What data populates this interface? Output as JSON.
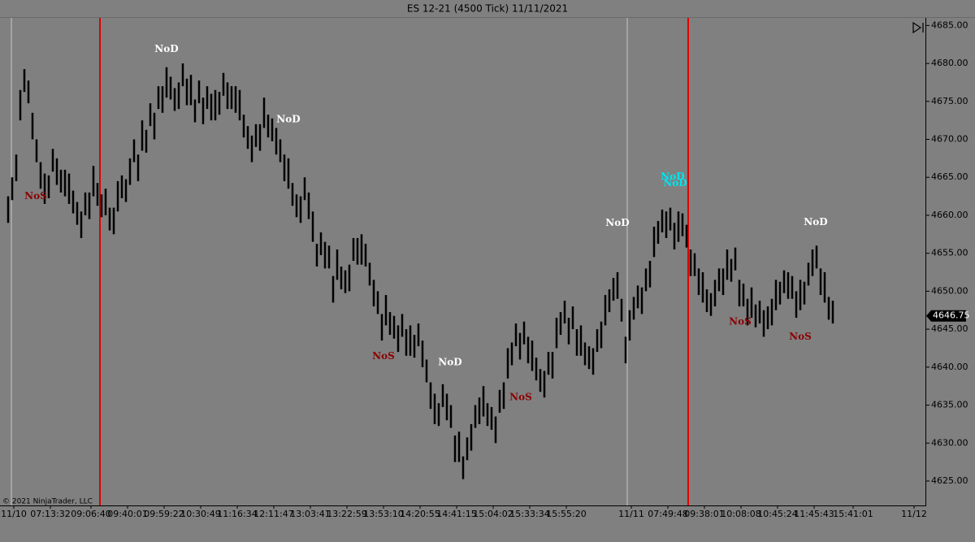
{
  "chart_data": {
    "type": "ohlc",
    "title": "ES 12-21 (4500 Tick)  11/11/2021",
    "watermark": "© 2021 NinjaTrader, LLC",
    "background": "#808080",
    "bar_color": "#000000",
    "high": [
      4662.5,
      4665,
      4668,
      4676.5,
      4679.25,
      4677.75,
      4673.5,
      4670,
      4667,
      4665.5,
      4665.25,
      4668.75,
      4667.5,
      4666,
      4666,
      4665.5,
      4663.25,
      4661.75,
      4660.5,
      4663,
      4663,
      4666.5,
      4664.25,
      4662.75,
      4663.5,
      4661,
      4661,
      4664.5,
      4665.25,
      4664.75,
      4667.5,
      4670,
      4668,
      4672.5,
      4671.25,
      4674.75,
      4673.5,
      4677,
      4677,
      4679.5,
      4678.25,
      4676.75,
      4677.5,
      4680,
      4678,
      4678.5,
      4675.25,
      4677.75,
      4675.5,
      4677,
      4676,
      4676.5,
      4676.25,
      4678.75,
      4677.5,
      4677,
      4677,
      4676.5,
      4673.25,
      4671.75,
      4670.5,
      4672,
      4672,
      4675.5,
      4673.25,
      4672.75,
      4671.5,
      4670,
      4668,
      4667.5,
      4664.25,
      4662.75,
      4662.5,
      4665,
      4663,
      4660.5,
      4656.25,
      4657.75,
      4656.5,
      4656,
      4652,
      4655.5,
      4653.25,
      4652.75,
      4653.5,
      4657,
      4657,
      4657.5,
      4656.25,
      4653.75,
      4651.5,
      4650,
      4647,
      4649.5,
      4647.25,
      4646.75,
      4645.5,
      4647,
      4645,
      4645.5,
      4644.25,
      4645.75,
      4643.5,
      4641,
      4638,
      4636.5,
      4635.25,
      4637.75,
      4636.5,
      4635,
      4631,
      4631.5,
      4628.25,
      4630.75,
      4632.5,
      4635,
      4636,
      4637.5,
      4635.25,
      4634.75,
      4633.5,
      4637,
      4638,
      4642.5,
      4643.25,
      4645.75,
      4644.5,
      4646,
      4644,
      4643.5,
      4641.25,
      4639.75,
      4639.5,
      4642,
      4642,
      4646.5,
      4647.25,
      4648.75,
      4646.5,
      4648,
      4645,
      4645.5,
      4643.25,
      4642.75,
      4642.5,
      4645,
      4646,
      4649.5,
      4650.25,
      4651.75,
      4652.5,
      4649,
      4644,
      4647.5,
      4649.25,
      4650.75,
      4650.5,
      4653,
      4654,
      4658.5,
      4659.25,
      4660.75,
      4660.5,
      4661,
      4659,
      4660.5,
      4660.25,
      4658.75,
      4655.5,
      4655,
      4653,
      4652.5,
      4650.25,
      4649.75,
      4651.5,
      4653,
      4653,
      4655.5,
      4654.25,
      4655.75,
      4651.5,
      4651,
      4649,
      4650.5,
      4648.25,
      4648.75,
      4647.5,
      4648,
      4649,
      4651.5,
      4651.25,
      4652.75,
      4652.5,
      4652,
      4650,
      4651.5,
      4651.25,
      4653.75,
      4655.5,
      4656,
      4653,
      4652.5,
      4649.25,
      4648.75
    ],
    "low": [
      4659,
      4662,
      4664.5,
      4672.5,
      4676.25,
      4674.75,
      4670,
      4667,
      4663.5,
      4661.5,
      4662.25,
      4665.75,
      4664,
      4663,
      4662.5,
      4661.5,
      4660.25,
      4658.75,
      4657,
      4660,
      4659.5,
      4662.5,
      4661.25,
      4659.75,
      4660,
      4658,
      4657.5,
      4660.5,
      4662.25,
      4661.75,
      4664,
      4667,
      4664.5,
      4668.5,
      4668.25,
      4671.75,
      4670,
      4674,
      4673.5,
      4675.5,
      4675.25,
      4673.75,
      4674,
      4677,
      4674.5,
      4674.5,
      4672.25,
      4674.75,
      4672,
      4674,
      4672.5,
      4672.5,
      4673.25,
      4675.75,
      4674,
      4674,
      4673.5,
      4672.5,
      4670.25,
      4668.75,
      4667,
      4669,
      4668.5,
      4671.5,
      4670.25,
      4669.75,
      4668,
      4667,
      4664.5,
      4663.5,
      4661.25,
      4659.75,
      4659,
      4662,
      4659.5,
      4656.5,
      4653.25,
      4654.75,
      4653,
      4653,
      4648.5,
      4651.5,
      4650.25,
      4649.75,
      4650,
      4654,
      4653.5,
      4653.5,
      4653.25,
      4650.75,
      4648,
      4647,
      4643.5,
      4645.5,
      4644.25,
      4643.75,
      4642,
      4644,
      4641.5,
      4641.5,
      4641.25,
      4642.75,
      4640,
      4638,
      4634.5,
      4632.5,
      4632.25,
      4634.75,
      4633,
      4632,
      4627.5,
      4627.5,
      4625.25,
      4627.75,
      4629,
      4632,
      4632.5,
      4633.5,
      4632.25,
      4631.75,
      4630,
      4634,
      4634.5,
      4638.5,
      4640.25,
      4642.75,
      4641,
      4643,
      4640.5,
      4639.5,
      4638.25,
      4636.75,
      4636,
      4639,
      4638.5,
      4642.5,
      4644.25,
      4645.75,
      4643,
      4645,
      4641.5,
      4641.5,
      4640.25,
      4639.75,
      4639,
      4642,
      4642.5,
      4645.5,
      4647.25,
      4648.75,
      4649,
      4646,
      4640.5,
      4643.5,
      4646.25,
      4647.75,
      4647,
      4650,
      4650.5,
      4654.5,
      4656.25,
      4657.75,
      4657,
      4658,
      4655.5,
      4656.5,
      4657.25,
      4655.75,
      4652,
      4652,
      4649.5,
      4648.5,
      4647.25,
      4646.75,
      4648,
      4650,
      4649.5,
      4651.5,
      4651.25,
      4652.75,
      4648,
      4648,
      4645.5,
      4646.5,
      4645.25,
      4645.75,
      4644,
      4645,
      4645.5,
      4647.5,
      4648.25,
      4649.75,
      4649,
      4649,
      4646.5,
      4647.5,
      4648.25,
      4650.75,
      4652,
      4653,
      4649.5,
      4648.5,
      4646.25,
      4645.75
    ],
    "xlim": [
      -2,
      225.6
    ],
    "xticks": [
      {
        "value": 1.4,
        "label": "11/10"
      },
      {
        "value": 10.4,
        "label": "07:13:32"
      },
      {
        "value": 20.4,
        "label": "09:06:40"
      },
      {
        "value": 29.4,
        "label": "09:40:01"
      },
      {
        "value": 38.4,
        "label": "09:59:22"
      },
      {
        "value": 47.4,
        "label": "10:30:49"
      },
      {
        "value": 56.4,
        "label": "11:16:34"
      },
      {
        "value": 65.4,
        "label": "12:11:47"
      },
      {
        "value": 74.4,
        "label": "13:03:41"
      },
      {
        "value": 83.4,
        "label": "13:22:59"
      },
      {
        "value": 92.4,
        "label": "13:53:10"
      },
      {
        "value": 101.4,
        "label": "14:20:55"
      },
      {
        "value": 110.4,
        "label": "14:41:15"
      },
      {
        "value": 119.4,
        "label": "15:04:02"
      },
      {
        "value": 128.4,
        "label": "15:33:34"
      },
      {
        "value": 137.4,
        "label": "15:55:20"
      },
      {
        "value": 153.4,
        "label": "11/11"
      },
      {
        "value": 162.4,
        "label": "07:49:48"
      },
      {
        "value": 171.4,
        "label": "09:38:01"
      },
      {
        "value": 180.4,
        "label": "10:08:08"
      },
      {
        "value": 189.4,
        "label": "10:45:24"
      },
      {
        "value": 198.4,
        "label": "11:45:43"
      },
      {
        "value": 208,
        "label": "15:41:01"
      },
      {
        "value": 223,
        "label": "11/12"
      }
    ],
    "ylim": [
      4622,
      4686
    ],
    "yticks": [
      {
        "value": 4625,
        "label": "4625.00"
      },
      {
        "value": 4630,
        "label": "4630.00"
      },
      {
        "value": 4635,
        "label": "4635.00"
      },
      {
        "value": 4640,
        "label": "4640.00"
      },
      {
        "value": 4645,
        "label": "4645.00"
      },
      {
        "value": 4650,
        "label": "4650.00"
      },
      {
        "value": 4655,
        "label": "4655.00"
      },
      {
        "value": 4660,
        "label": "4660.00"
      },
      {
        "value": 4665,
        "label": "4665.00"
      },
      {
        "value": 4670,
        "label": "4670.00"
      },
      {
        "value": 4675,
        "label": "4675.00"
      },
      {
        "value": 4680,
        "label": "4680.00"
      },
      {
        "value": 4685,
        "label": "4685.00"
      }
    ],
    "vlines": [
      {
        "x": 0.8,
        "color": "#c8c8c8"
      },
      {
        "x": 22.6,
        "color": "#e00000"
      },
      {
        "x": 152.4,
        "color": "#c8c8c8"
      },
      {
        "x": 167.4,
        "color": "#e00000"
      }
    ],
    "annotations": [
      {
        "text": "NoS",
        "x": 6.8,
        "y": 4662.5,
        "color": "#8b0000"
      },
      {
        "text": "NoD",
        "x": 39,
        "y": 4681.9,
        "color": "#ffffff"
      },
      {
        "text": "NoD",
        "x": 69,
        "y": 4672.6,
        "color": "#ffffff"
      },
      {
        "text": "NoS",
        "x": 92.4,
        "y": 4641.4,
        "color": "#8b0000"
      },
      {
        "text": "NoD",
        "x": 108.8,
        "y": 4640.6,
        "color": "#ffffff"
      },
      {
        "text": "NoS",
        "x": 126.2,
        "y": 4636,
        "color": "#8b0000"
      },
      {
        "text": "NoD",
        "x": 150,
        "y": 4659,
        "color": "#ffffff"
      },
      {
        "text": "NoD",
        "x": 163.6,
        "y": 4665.1,
        "color": "#00e5ee"
      },
      {
        "text": "NoD",
        "x": 164.2,
        "y": 4664.2,
        "color": "#00e5ee"
      },
      {
        "text": "NoS",
        "x": 180.2,
        "y": 4646,
        "color": "#8b0000"
      },
      {
        "text": "NoD",
        "x": 198.8,
        "y": 4659.1,
        "color": "#ffffff"
      },
      {
        "text": "NoS",
        "x": 195,
        "y": 4644,
        "color": "#8b0000"
      }
    ],
    "last_price": 4646.75
  }
}
